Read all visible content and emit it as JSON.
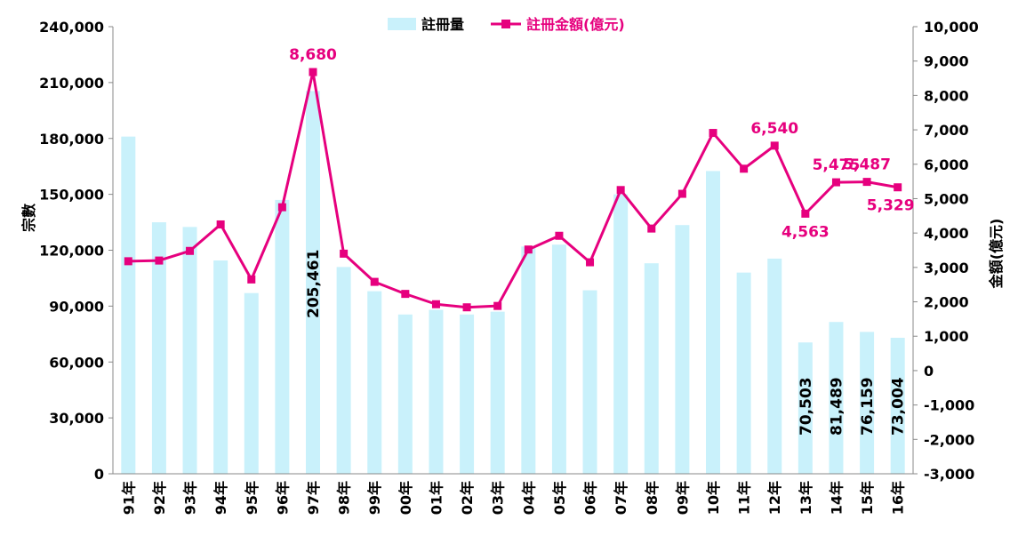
{
  "chart_data": {
    "type": "bar+line",
    "categories": [
      "91年",
      "92年",
      "93年",
      "94年",
      "95年",
      "96年",
      "97年",
      "98年",
      "99年",
      "00年",
      "01年",
      "02年",
      "03年",
      "04年",
      "05年",
      "06年",
      "07年",
      "08年",
      "09年",
      "10年",
      "11年",
      "12年",
      "13年",
      "14年",
      "15年",
      "16年"
    ],
    "series": [
      {
        "name": "註冊量",
        "type": "bar",
        "axis": "left",
        "color": "#c9f1fb",
        "values": [
          181000,
          135000,
          132500,
          114500,
          97000,
          147000,
          205461,
          111000,
          98000,
          85500,
          88000,
          85500,
          87000,
          122000,
          123000,
          98500,
          150000,
          113000,
          133500,
          162500,
          108000,
          115500,
          70503,
          81489,
          76159,
          73004
        ]
      },
      {
        "name": "註冊金額(億元)",
        "type": "line",
        "axis": "right",
        "color": "#e6007e",
        "values": [
          3180,
          3200,
          3480,
          4250,
          2650,
          4750,
          8680,
          3400,
          2580,
          2230,
          1930,
          1840,
          1880,
          3520,
          3920,
          3150,
          5250,
          4130,
          5140,
          6910,
          5870,
          6540,
          4563,
          5475,
          5487,
          5329
        ]
      }
    ],
    "bar_labels": [
      {
        "index": 6,
        "text": "205,461"
      },
      {
        "index": 22,
        "text": "70,503"
      },
      {
        "index": 23,
        "text": "81,489"
      },
      {
        "index": 24,
        "text": "76,159"
      },
      {
        "index": 25,
        "text": "73,004"
      }
    ],
    "line_labels": [
      {
        "index": 6,
        "text": "8,680",
        "pos": "above"
      },
      {
        "index": 21,
        "text": "6,540",
        "pos": "above"
      },
      {
        "index": 22,
        "text": "4,563",
        "pos": "below"
      },
      {
        "index": 23,
        "text": "5,475",
        "pos": "above"
      },
      {
        "index": 24,
        "text": "5,487",
        "pos": "above"
      },
      {
        "index": 25,
        "text": "5,329",
        "pos": "below"
      }
    ],
    "y_left": {
      "label": "宗數",
      "ylim": [
        0,
        240000
      ],
      "ticks": [
        0,
        30000,
        60000,
        90000,
        120000,
        150000,
        180000,
        210000,
        240000
      ],
      "tick_labels": [
        "0",
        "30,000",
        "60,000",
        "90,000",
        "120,000",
        "150,000",
        "180,000",
        "210,000",
        "240,000"
      ]
    },
    "y_right": {
      "label": "金額(億元)",
      "ylim": [
        -3000,
        10000
      ],
      "ticks": [
        -3000,
        -2000,
        -1000,
        0,
        1000,
        2000,
        3000,
        4000,
        5000,
        6000,
        7000,
        8000,
        9000,
        10000
      ],
      "tick_labels": [
        "-3,000",
        "-2,000",
        "-1,000",
        "0",
        "1,000",
        "2,000",
        "3,000",
        "4,000",
        "5,000",
        "6,000",
        "7,000",
        "8,000",
        "9,000",
        "10,000"
      ]
    },
    "legend": {
      "position": "top-center"
    },
    "grid": false
  }
}
